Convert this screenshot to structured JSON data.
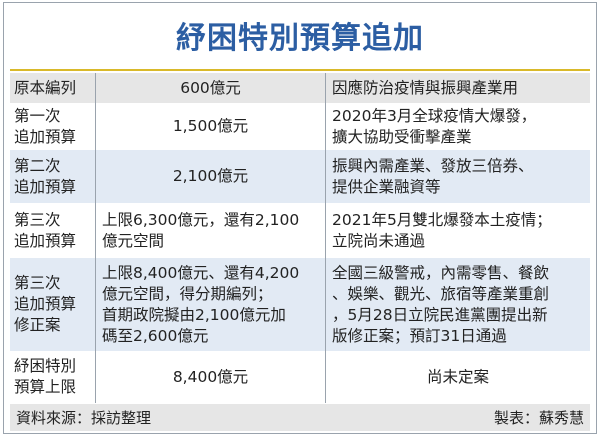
{
  "title": "紓困特別預算追加",
  "colors": {
    "title": "#2c5ea3",
    "rule": "#d9b92a",
    "gray_row": "#e6e6e6",
    "blue_row": "#e2eaf4"
  },
  "rows": [
    {
      "label": [
        "原本編列"
      ],
      "amount": [
        "600億元"
      ],
      "note": [
        "因應防治疫情與振興產業用"
      ]
    },
    {
      "label": [
        "第一次",
        "追加預算"
      ],
      "amount": [
        "1,500億元"
      ],
      "note": [
        "2020年3月全球疫情大爆發，",
        "擴大協助受衝擊產業"
      ]
    },
    {
      "label": [
        "第二次",
        "追加預算"
      ],
      "amount": [
        "2,100億元"
      ],
      "note": [
        "振興內需產業、發放三倍券、",
        "提供企業融資等"
      ]
    },
    {
      "label": [
        "第三次",
        "追加預算"
      ],
      "amount": [
        "上限6,300億元，還有2,100",
        "億元空間"
      ],
      "note": [
        "2021年5月雙北爆發本土疫情；",
        "立院尚未通過"
      ]
    },
    {
      "label": [
        "第三次",
        "追加預算",
        "修正案"
      ],
      "amount": [
        "上限8,400億元、還有4,200",
        "億元空間，得分期編列；",
        "首期政院擬由2,100億元加",
        "碼至2,600億元"
      ],
      "note": [
        "全國三級警戒，內需零售、餐飲",
        "、娛樂、觀光、旅宿等產業重創",
        "，5月28日立院民進黨團提出新",
        "版修正案；預訂31日通過"
      ]
    },
    {
      "label": [
        "紓困特別",
        "預算上限"
      ],
      "amount": [
        "8,400億元"
      ],
      "note": [
        "尚未定案"
      ]
    }
  ],
  "footer": {
    "source": "資料來源：採訪整理",
    "author": "製表：蘇秀慧"
  }
}
